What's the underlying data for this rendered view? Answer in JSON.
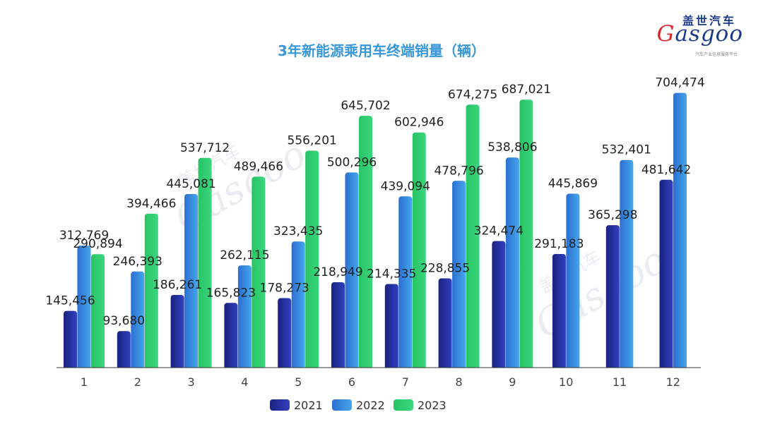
{
  "chart_data": {
    "type": "bar",
    "title": "3年新能源乘用车终端销量（辆）",
    "categories": [
      "1",
      "2",
      "3",
      "4",
      "5",
      "6",
      "7",
      "8",
      "9",
      "10",
      "11",
      "12"
    ],
    "series": [
      {
        "name": "2021",
        "color": "#1f2f9c",
        "values": [
          145456,
          93680,
          186261,
          165823,
          178273,
          218949,
          214335,
          228855,
          324474,
          291183,
          365298,
          481642
        ]
      },
      {
        "name": "2022",
        "color": "#3a8fe0",
        "values": [
          312769,
          246393,
          445081,
          262115,
          323435,
          500296,
          439094,
          478796,
          538806,
          445869,
          532401,
          704474
        ]
      },
      {
        "name": "2023",
        "color": "#2ecc71",
        "values": [
          290894,
          394466,
          537712,
          489466,
          556201,
          645702,
          602946,
          674275,
          687021,
          null,
          null,
          null
        ]
      }
    ],
    "data_labels": [
      [
        "145,456",
        "93,680",
        "186,261",
        "165,823",
        "178,273",
        "218,949",
        "214,335",
        "228,855",
        "324,474",
        "291,183",
        "365,298",
        "481,642"
      ],
      [
        "312,769",
        "246,393",
        "445,081",
        "262,115",
        "323,435",
        "500,296",
        "439,094",
        "478,796",
        "538,806",
        "445,869",
        "532,401",
        "704,474"
      ],
      [
        "290,894",
        "394,466",
        "537,712",
        "489,466",
        "556,201",
        "645,702",
        "602,946",
        "674,275",
        "687,021",
        null,
        null,
        null
      ]
    ],
    "ylim": [
      0,
      720000
    ],
    "xlabel": "",
    "ylabel": "",
    "grid": false,
    "legend_position": "bottom"
  },
  "logo": {
    "cn": "盖世汽车",
    "en_first": "G",
    "en_rest": "asgoo",
    "sub": "汽车产业信息服务平台"
  },
  "watermark": {
    "cn": "盖世汽车",
    "en": "Gasgoo"
  }
}
